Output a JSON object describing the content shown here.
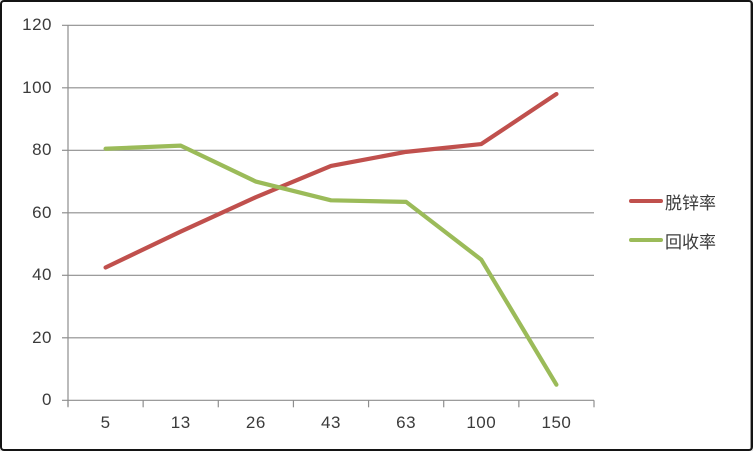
{
  "chart_data": {
    "type": "line",
    "title": "",
    "xlabel": "",
    "ylabel": "",
    "categories": [
      "5",
      "13",
      "26",
      "43",
      "63",
      "100",
      "150"
    ],
    "series": [
      {
        "name": "脱锌率",
        "color": "#c0504d",
        "values": [
          42.5,
          54,
          65,
          75,
          79.5,
          82,
          98
        ]
      },
      {
        "name": "回收率",
        "color": "#9bbb59",
        "values": [
          80.5,
          81.5,
          70,
          64,
          63.5,
          45,
          5
        ]
      }
    ],
    "ylim": [
      0,
      120
    ],
    "yticks": [
      0,
      20,
      40,
      60,
      80,
      100,
      120
    ],
    "grid": true,
    "legend_position": "right",
    "gridline_color": "#8e8e8e",
    "axis_color": "#8e8e8e",
    "label_color": "#3b3b3b"
  }
}
